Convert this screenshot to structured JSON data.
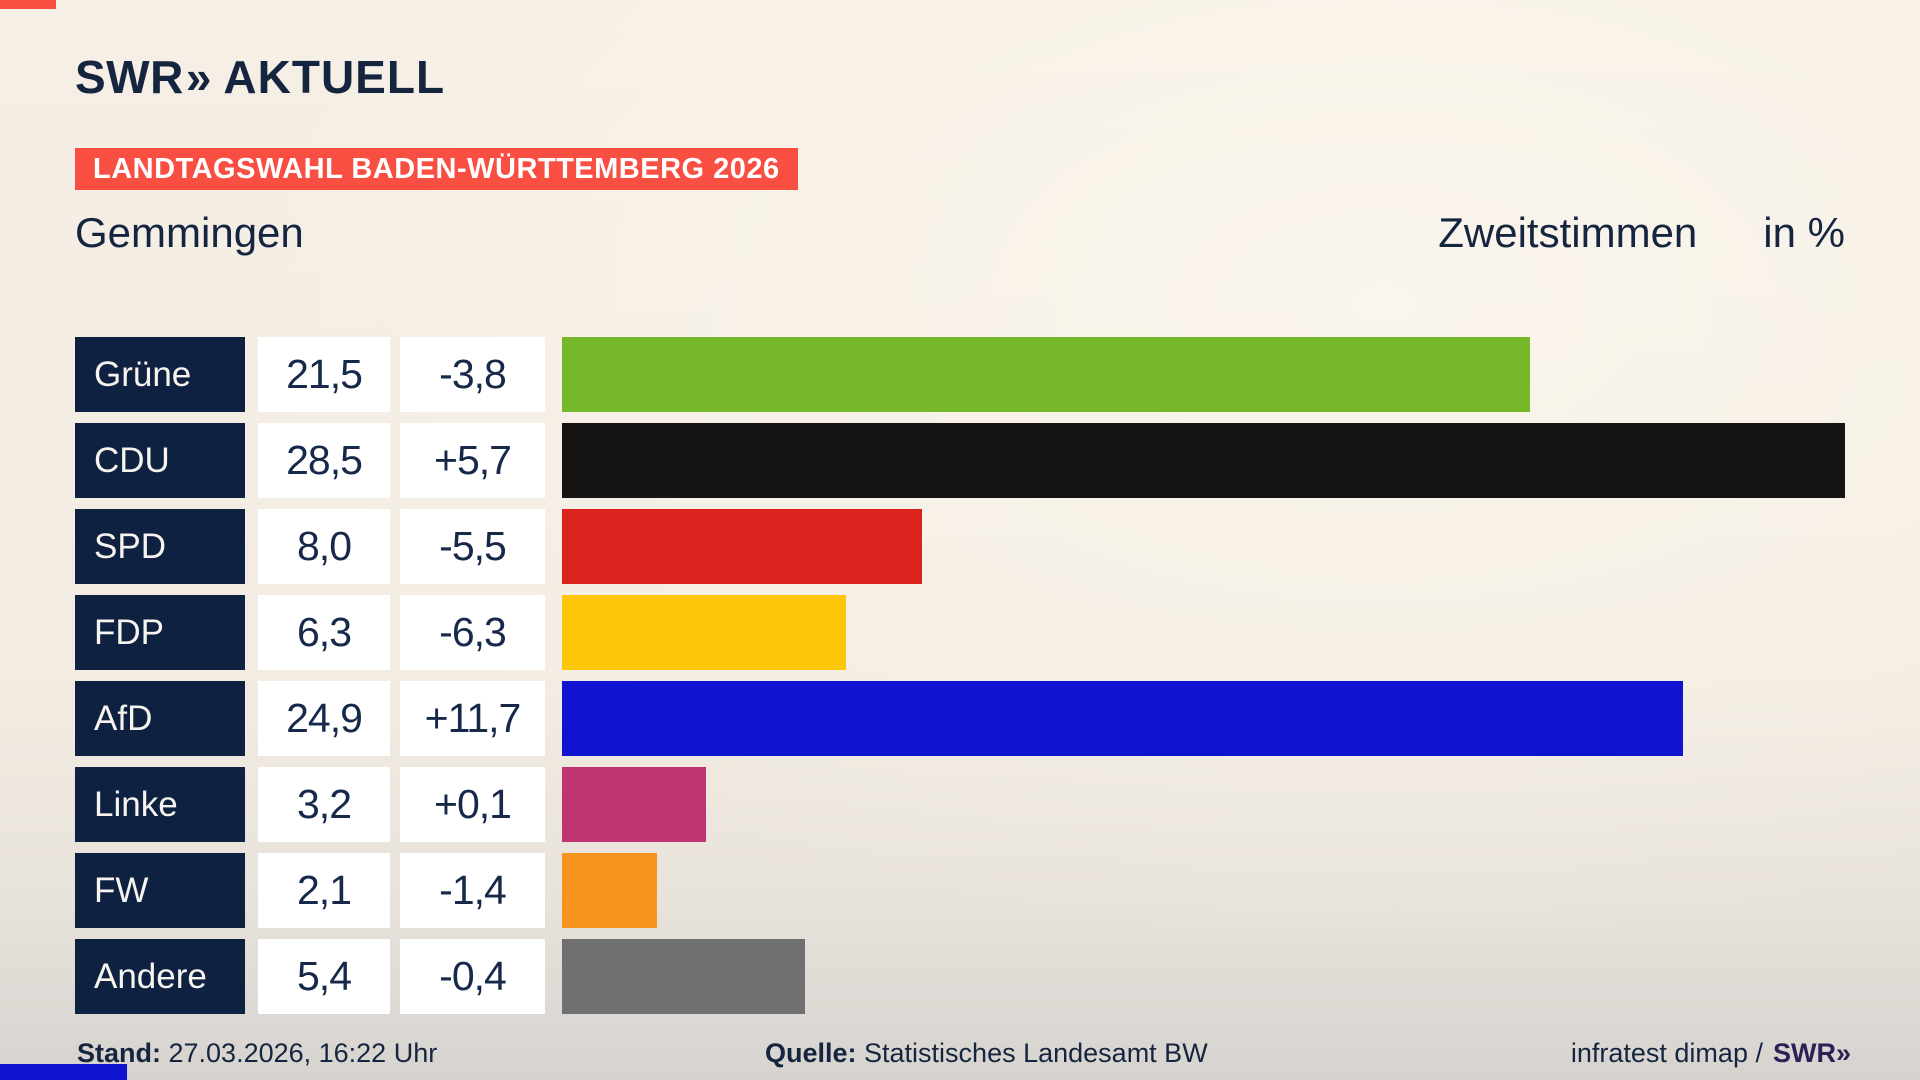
{
  "header": {
    "brand": {
      "name": "SWR",
      "chevrons": "»",
      "product": "AKTUELL"
    },
    "banner": "LANDTAGSWAHL BADEN-WÜRTTEMBERG 2026",
    "location": "Gemmingen",
    "measure": "Zweitstimmen",
    "unit": "in %"
  },
  "chart_data": {
    "type": "bar",
    "orientation": "horizontal",
    "title": "Zweitstimmen in %",
    "subtitle": "Gemmingen",
    "categories": [
      "Grüne",
      "CDU",
      "SPD",
      "FDP",
      "AfD",
      "Linke",
      "FW",
      "Andere"
    ],
    "values": [
      21.5,
      28.5,
      8.0,
      6.3,
      24.9,
      3.2,
      2.1,
      5.4
    ],
    "changes": [
      -3.8,
      5.7,
      -5.5,
      -6.3,
      11.7,
      0.1,
      -1.4,
      -0.4
    ],
    "value_labels": [
      "21,5",
      "28,5",
      "8,0",
      "6,3",
      "24,9",
      "3,2",
      "2,1",
      "5,4"
    ],
    "change_labels": [
      "-3,8",
      "+5,7",
      "-5,5",
      "-6,3",
      "+11,7",
      "+0,1",
      "-1,4",
      "-0,4"
    ],
    "bar_colors": [
      "#76b82a",
      "#161412",
      "#da231d",
      "#fdc609",
      "#1013d0",
      "#bf3572",
      "#f89320",
      "#707070"
    ],
    "xlim": [
      0,
      30
    ],
    "grid": false,
    "legend": false
  },
  "footer": {
    "stand_label": "Stand:",
    "stand_value": " 27.03.2026, 16:22 Uhr",
    "quelle_label": "Quelle:",
    "quelle_value": " Statistisches Landesamt BW",
    "credit": "infratest dimap /",
    "credit_brand_name": "SWR",
    "credit_brand_chevrons": "»"
  },
  "colors": {
    "background_top": "#f6efe5",
    "background_bottom": "#d6d3cf",
    "banner": "#f94e42",
    "navy_text": "#15253f",
    "label_box": "#0f2140",
    "value_box": "#ffffff"
  }
}
